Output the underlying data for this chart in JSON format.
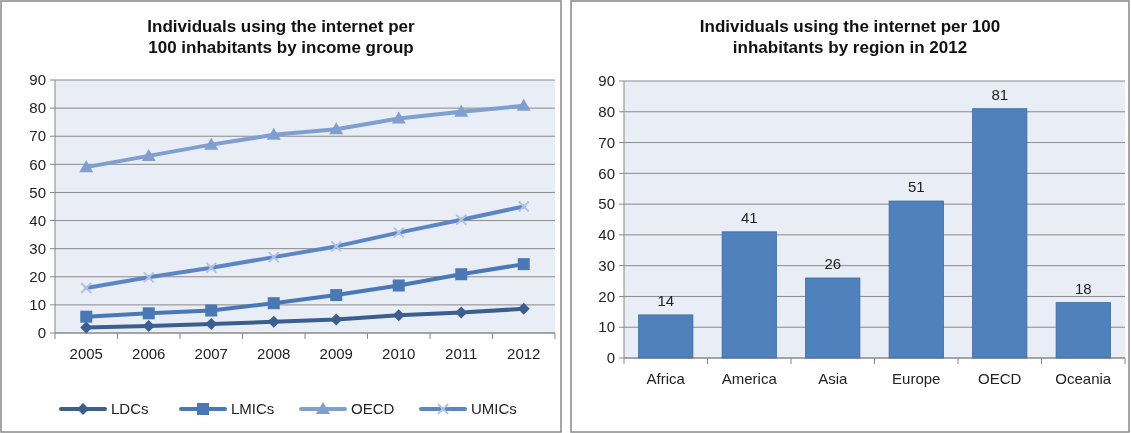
{
  "chart_data": [
    {
      "type": "line",
      "title": "Individuals using the internet per 100 inhabitants by income group",
      "categories": [
        "2005",
        "2006",
        "2007",
        "2008",
        "2009",
        "2010",
        "2011",
        "2012"
      ],
      "ylim": [
        0,
        90
      ],
      "yticks": [
        0,
        10,
        20,
        30,
        40,
        50,
        60,
        70,
        80,
        90
      ],
      "grid": "y",
      "legend": "bottom",
      "series": [
        {
          "name": "LDCs",
          "color": "#3a5f8f",
          "marker": "diamond",
          "values": [
            2.0,
            2.5,
            3.2,
            4.0,
            4.8,
            6.3,
            7.3,
            8.6
          ]
        },
        {
          "name": "LMICs",
          "color": "#4a78b5",
          "marker": "square",
          "values": [
            5.8,
            7.0,
            8.0,
            10.6,
            13.5,
            16.9,
            20.9,
            24.5
          ]
        },
        {
          "name": "OECD",
          "color": "#7f9fd0",
          "marker": "triangle",
          "values": [
            59.0,
            63.0,
            67.0,
            70.5,
            72.5,
            76.3,
            78.7,
            80.8
          ]
        },
        {
          "name": "UMICs",
          "color": "#5a86c5",
          "marker": "cross",
          "values": [
            16.0,
            19.8,
            23.2,
            27.0,
            30.8,
            35.7,
            40.3,
            45.0
          ]
        }
      ]
    },
    {
      "type": "bar",
      "title": "Individuals using the internet per 100 inhabitants by region in 2012",
      "categories": [
        "Africa",
        "America",
        "Asia",
        "Europe",
        "OECD",
        "Oceania"
      ],
      "values": [
        14,
        41,
        26,
        51,
        81,
        18
      ],
      "color": "#4f81bd",
      "ylim": [
        0,
        90
      ],
      "yticks": [
        0,
        10,
        20,
        30,
        40,
        50,
        60,
        70,
        80,
        90
      ],
      "grid": "y",
      "data_labels": true
    }
  ]
}
